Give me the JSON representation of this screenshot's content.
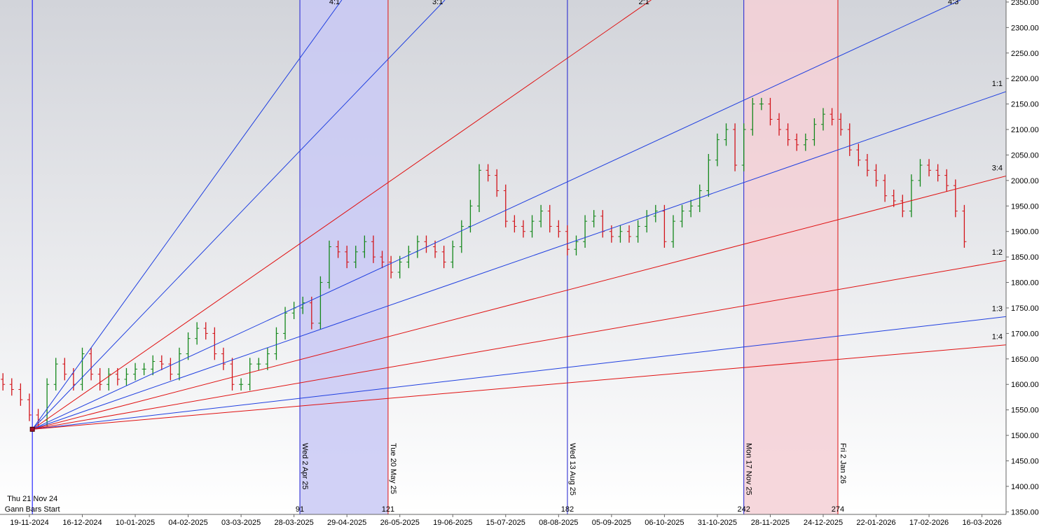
{
  "chart_data": {
    "type": "ohlc",
    "x": [
      -10,
      -7,
      -4,
      -1,
      2,
      5,
      8,
      11,
      14,
      17,
      20,
      23,
      26,
      29,
      32,
      35,
      38,
      41,
      44,
      47,
      50,
      53,
      56,
      59,
      62,
      65,
      68,
      71,
      74,
      77,
      80,
      83,
      86,
      89,
      92,
      95,
      98,
      101,
      104,
      107,
      110,
      113,
      116,
      119,
      122,
      125,
      128,
      131,
      134,
      137,
      140,
      143,
      146,
      149,
      152,
      155,
      158,
      161,
      164,
      167,
      170,
      173,
      176,
      179,
      182,
      185,
      188,
      191,
      194,
      197,
      200,
      203,
      206,
      209,
      212,
      215,
      218,
      221,
      224,
      227,
      230,
      233,
      236,
      239,
      242,
      245,
      248,
      251,
      254,
      257,
      260,
      263,
      266,
      269,
      272,
      275,
      278,
      281,
      284,
      287,
      290,
      293,
      296,
      299,
      302,
      305,
      308,
      311,
      314,
      317
    ],
    "open": [
      1610,
      1600,
      1590,
      1570,
      1540,
      1530,
      1600,
      1640,
      1620,
      1600,
      1660,
      1620,
      1600,
      1620,
      1610,
      1620,
      1630,
      1630,
      1645,
      1640,
      1620,
      1660,
      1690,
      1710,
      1700,
      1660,
      1640,
      1600,
      1600,
      1640,
      1640,
      1660,
      1700,
      1740,
      1750,
      1760,
      1720,
      1800,
      1870,
      1860,
      1840,
      1860,
      1880,
      1850,
      1840,
      1820,
      1840,
      1860,
      1880,
      1870,
      1860,
      1840,
      1870,
      1910,
      1950,
      2020,
      2010,
      1980,
      1920,
      1910,
      1900,
      1920,
      1940,
      1910,
      1900,
      1865,
      1880,
      1920,
      1930,
      1900,
      1890,
      1900,
      1890,
      1910,
      1930,
      1940,
      1880,
      1920,
      1940,
      1950,
      1980,
      2040,
      2080,
      2100,
      2030,
      2100,
      2150,
      2150,
      2120,
      2100,
      2080,
      2070,
      2080,
      2110,
      2130,
      2120,
      2100,
      2060,
      2040,
      2020,
      2000,
      1970,
      1960,
      1940,
      2000,
      2030,
      2020,
      2010,
      1990,
      1940
    ],
    "high": [
      1622,
      1612,
      1602,
      1582,
      1552,
      1612,
      1652,
      1652,
      1632,
      1672,
      1672,
      1632,
      1632,
      1632,
      1632,
      1642,
      1642,
      1657,
      1657,
      1652,
      1672,
      1702,
      1722,
      1722,
      1712,
      1672,
      1652,
      1612,
      1652,
      1652,
      1672,
      1712,
      1752,
      1762,
      1772,
      1772,
      1812,
      1882,
      1882,
      1872,
      1872,
      1892,
      1892,
      1862,
      1852,
      1852,
      1872,
      1892,
      1892,
      1882,
      1872,
      1882,
      1922,
      1962,
      2032,
      2032,
      2022,
      1992,
      1932,
      1922,
      1932,
      1952,
      1952,
      1922,
      1912,
      1892,
      1932,
      1942,
      1942,
      1912,
      1912,
      1912,
      1922,
      1942,
      1952,
      1952,
      1932,
      1952,
      1962,
      1992,
      2052,
      2092,
      2112,
      2112,
      2112,
      2162,
      2162,
      2162,
      2132,
      2112,
      2092,
      2092,
      2122,
      2142,
      2142,
      2132,
      2112,
      2072,
      2052,
      2032,
      2012,
      1982,
      1972,
      2012,
      2042,
      2042,
      2032,
      2022,
      2002,
      1952
    ],
    "low": [
      1588,
      1578,
      1558,
      1528,
      1518,
      1518,
      1588,
      1608,
      1588,
      1588,
      1608,
      1588,
      1588,
      1598,
      1598,
      1608,
      1618,
      1618,
      1628,
      1608,
      1608,
      1648,
      1678,
      1688,
      1648,
      1628,
      1588,
      1588,
      1588,
      1628,
      1628,
      1648,
      1688,
      1728,
      1738,
      1708,
      1708,
      1788,
      1848,
      1828,
      1828,
      1848,
      1838,
      1828,
      1808,
      1808,
      1828,
      1848,
      1858,
      1848,
      1828,
      1828,
      1858,
      1898,
      1938,
      1998,
      1968,
      1908,
      1898,
      1888,
      1888,
      1908,
      1898,
      1888,
      1853,
      1853,
      1868,
      1908,
      1888,
      1878,
      1878,
      1878,
      1878,
      1898,
      1918,
      1868,
      1868,
      1908,
      1928,
      1938,
      1968,
      2028,
      2068,
      2018,
      2018,
      2088,
      2138,
      2108,
      2088,
      2068,
      2058,
      2058,
      2068,
      2098,
      2108,
      2088,
      2048,
      2028,
      2008,
      1988,
      1958,
      1948,
      1928,
      1928,
      1988,
      2008,
      1998,
      1978,
      1928,
      1868
    ],
    "close": [
      1600,
      1590,
      1570,
      1540,
      1530,
      1600,
      1640,
      1620,
      1600,
      1660,
      1620,
      1600,
      1620,
      1610,
      1620,
      1630,
      1630,
      1645,
      1640,
      1620,
      1660,
      1690,
      1710,
      1700,
      1660,
      1640,
      1600,
      1600,
      1640,
      1640,
      1660,
      1700,
      1740,
      1750,
      1760,
      1720,
      1800,
      1870,
      1860,
      1840,
      1860,
      1880,
      1850,
      1840,
      1820,
      1840,
      1860,
      1880,
      1870,
      1860,
      1840,
      1870,
      1910,
      1950,
      2020,
      2010,
      1980,
      1920,
      1910,
      1900,
      1920,
      1940,
      1910,
      1900,
      1865,
      1880,
      1920,
      1930,
      1900,
      1890,
      1900,
      1890,
      1910,
      1930,
      1940,
      1880,
      1920,
      1940,
      1950,
      1980,
      2040,
      2080,
      2100,
      2030,
      2100,
      2150,
      2150,
      2120,
      2100,
      2080,
      2070,
      2080,
      2110,
      2130,
      2120,
      2100,
      2060,
      2040,
      2020,
      2000,
      1970,
      1960,
      1940,
      2000,
      2030,
      2020,
      2010,
      1990,
      1940,
      1880
    ],
    "up_color": "#13871a",
    "down_color": "#d2141a",
    "xlim": [
      -11,
      331.2
    ],
    "xticks": [
      {
        "value": -1,
        "label": "19-11-2024"
      },
      {
        "value": 17,
        "label": "16-12-2024"
      },
      {
        "value": 35,
        "label": "10-01-2025"
      },
      {
        "value": 53,
        "label": "04-02-2025"
      },
      {
        "value": 71,
        "label": "03-03-2025"
      },
      {
        "value": 89,
        "label": "28-03-2025"
      },
      {
        "value": 107,
        "label": "29-04-2025"
      },
      {
        "value": 125,
        "label": "26-05-2025"
      },
      {
        "value": 143,
        "label": "19-06-2025"
      },
      {
        "value": 161,
        "label": "15-07-2025"
      },
      {
        "value": 179,
        "label": "08-08-2025"
      },
      {
        "value": 197,
        "label": "05-09-2025"
      },
      {
        "value": 215,
        "label": "06-10-2025"
      },
      {
        "value": 233,
        "label": "31-10-2025"
      },
      {
        "value": 251,
        "label": "28-11-2025"
      },
      {
        "value": 269,
        "label": "24-12-2025"
      },
      {
        "value": 287,
        "label": "22-01-2026"
      },
      {
        "value": 305,
        "label": "17-02-2026"
      },
      {
        "value": 323,
        "label": "16-03-2026"
      }
    ],
    "ylim": [
      1345,
      2354
    ],
    "yticks": [
      {
        "value": 1350,
        "label": "1350.00"
      },
      {
        "value": 1400,
        "label": "1400.00"
      },
      {
        "value": 1450,
        "label": "1450.00"
      },
      {
        "value": 1500,
        "label": "1500.00"
      },
      {
        "value": 1550,
        "label": "1550.00"
      },
      {
        "value": 1600,
        "label": "1600.00"
      },
      {
        "value": 1650,
        "label": "1650.00"
      },
      {
        "value": 1700,
        "label": "1700.00"
      },
      {
        "value": 1750,
        "label": "1750.00"
      },
      {
        "value": 1800,
        "label": "1800.00"
      },
      {
        "value": 1850,
        "label": "1850.00"
      },
      {
        "value": 1900,
        "label": "1900.00"
      },
      {
        "value": 1950,
        "label": "1950.00"
      },
      {
        "value": 2000,
        "label": "2000.00"
      },
      {
        "value": 2050,
        "label": "2050.00"
      },
      {
        "value": 2100,
        "label": "2100.00"
      },
      {
        "value": 2150,
        "label": "2150.00"
      },
      {
        "value": 2200,
        "label": "2200.00"
      },
      {
        "value": 2250,
        "label": "2250.00"
      },
      {
        "value": 2300,
        "label": "2300.00"
      },
      {
        "value": 2350,
        "label": "2350.00"
      }
    ],
    "gann": {
      "origin": {
        "x": 0,
        "y": 1512,
        "date": "Thu 21 Nov 24",
        "label": "Gann Bars Start",
        "color": "#0000ff"
      },
      "lines": [
        {
          "label": "4:1",
          "slope": 8,
          "color": "#1f3fe0"
        },
        {
          "label": "3:1",
          "slope": 6,
          "color": "#1f3fe0"
        },
        {
          "label": "2:1",
          "slope": 4,
          "color": "#e01010"
        },
        {
          "label": "4:3",
          "slope": 2.667,
          "color": "#1f3fe0"
        },
        {
          "label": "1:1",
          "slope": 2,
          "color": "#1f3fe0"
        },
        {
          "label": "3:4",
          "slope": 1.5,
          "color": "#e01010"
        },
        {
          "label": "1:2",
          "slope": 1,
          "color": "#e01010"
        },
        {
          "label": "1:3",
          "slope": 0.667,
          "color": "#1f3fe0"
        },
        {
          "label": "1:4",
          "slope": 0.5,
          "color": "#e01010"
        }
      ]
    },
    "markers": [
      {
        "x": 91,
        "date": "Wed 2 Apr 25",
        "color": "#1f1fd0"
      },
      {
        "x": 121,
        "date": "Tue 20 May 25",
        "color": "#e01010"
      },
      {
        "x": 182,
        "date": "Wed 13 Aug 25",
        "color": "#1f1fd0"
      },
      {
        "x": 242,
        "date": "Mon 17 Nov 25",
        "color": "#1f1fd0"
      },
      {
        "x": 274,
        "date": "Fri 2 Jan 26",
        "color": "#e01010"
      }
    ],
    "zones": [
      {
        "from": 91,
        "to": 121,
        "color": "#c9c9f4"
      },
      {
        "from": 242,
        "to": 274,
        "color": "#f5d0d6"
      }
    ]
  }
}
